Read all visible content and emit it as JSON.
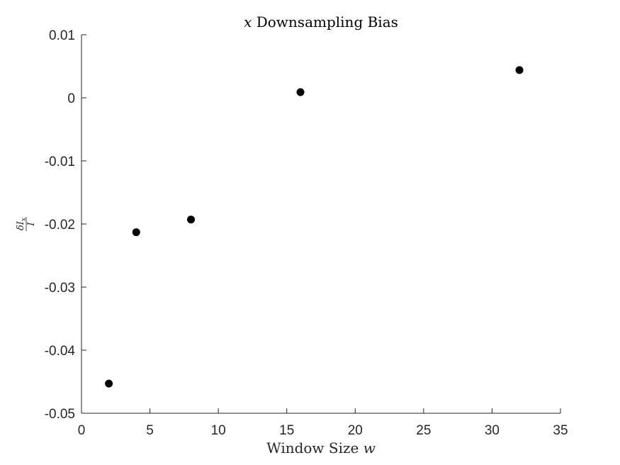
{
  "chart_data": {
    "type": "scatter",
    "title_var": "x",
    "title_text": " Downsampling Bias",
    "xlabel_text": "Window Size ",
    "xlabel_var": "w",
    "ylabel_num": "δI",
    "ylabel_sub": "x",
    "ylabel_den": "I",
    "xlim": [
      0,
      35
    ],
    "ylim": [
      -0.05,
      0.01
    ],
    "xticks": [
      0,
      5,
      10,
      15,
      20,
      25,
      30,
      35
    ],
    "xtick_labels": [
      "0",
      "5",
      "10",
      "15",
      "20",
      "25",
      "30",
      "35"
    ],
    "yticks": [
      -0.05,
      -0.04,
      -0.03,
      -0.02,
      -0.01,
      0,
      0.01
    ],
    "ytick_labels": [
      "-0.05",
      "-0.04",
      "-0.03",
      "-0.02",
      "-0.01",
      "0",
      "0.01"
    ],
    "grid": false,
    "marker_color": "#000000",
    "x": [
      2,
      4,
      8,
      16,
      32
    ],
    "y": [
      -0.0453,
      -0.0213,
      -0.0193,
      0.0009,
      0.0044
    ]
  }
}
